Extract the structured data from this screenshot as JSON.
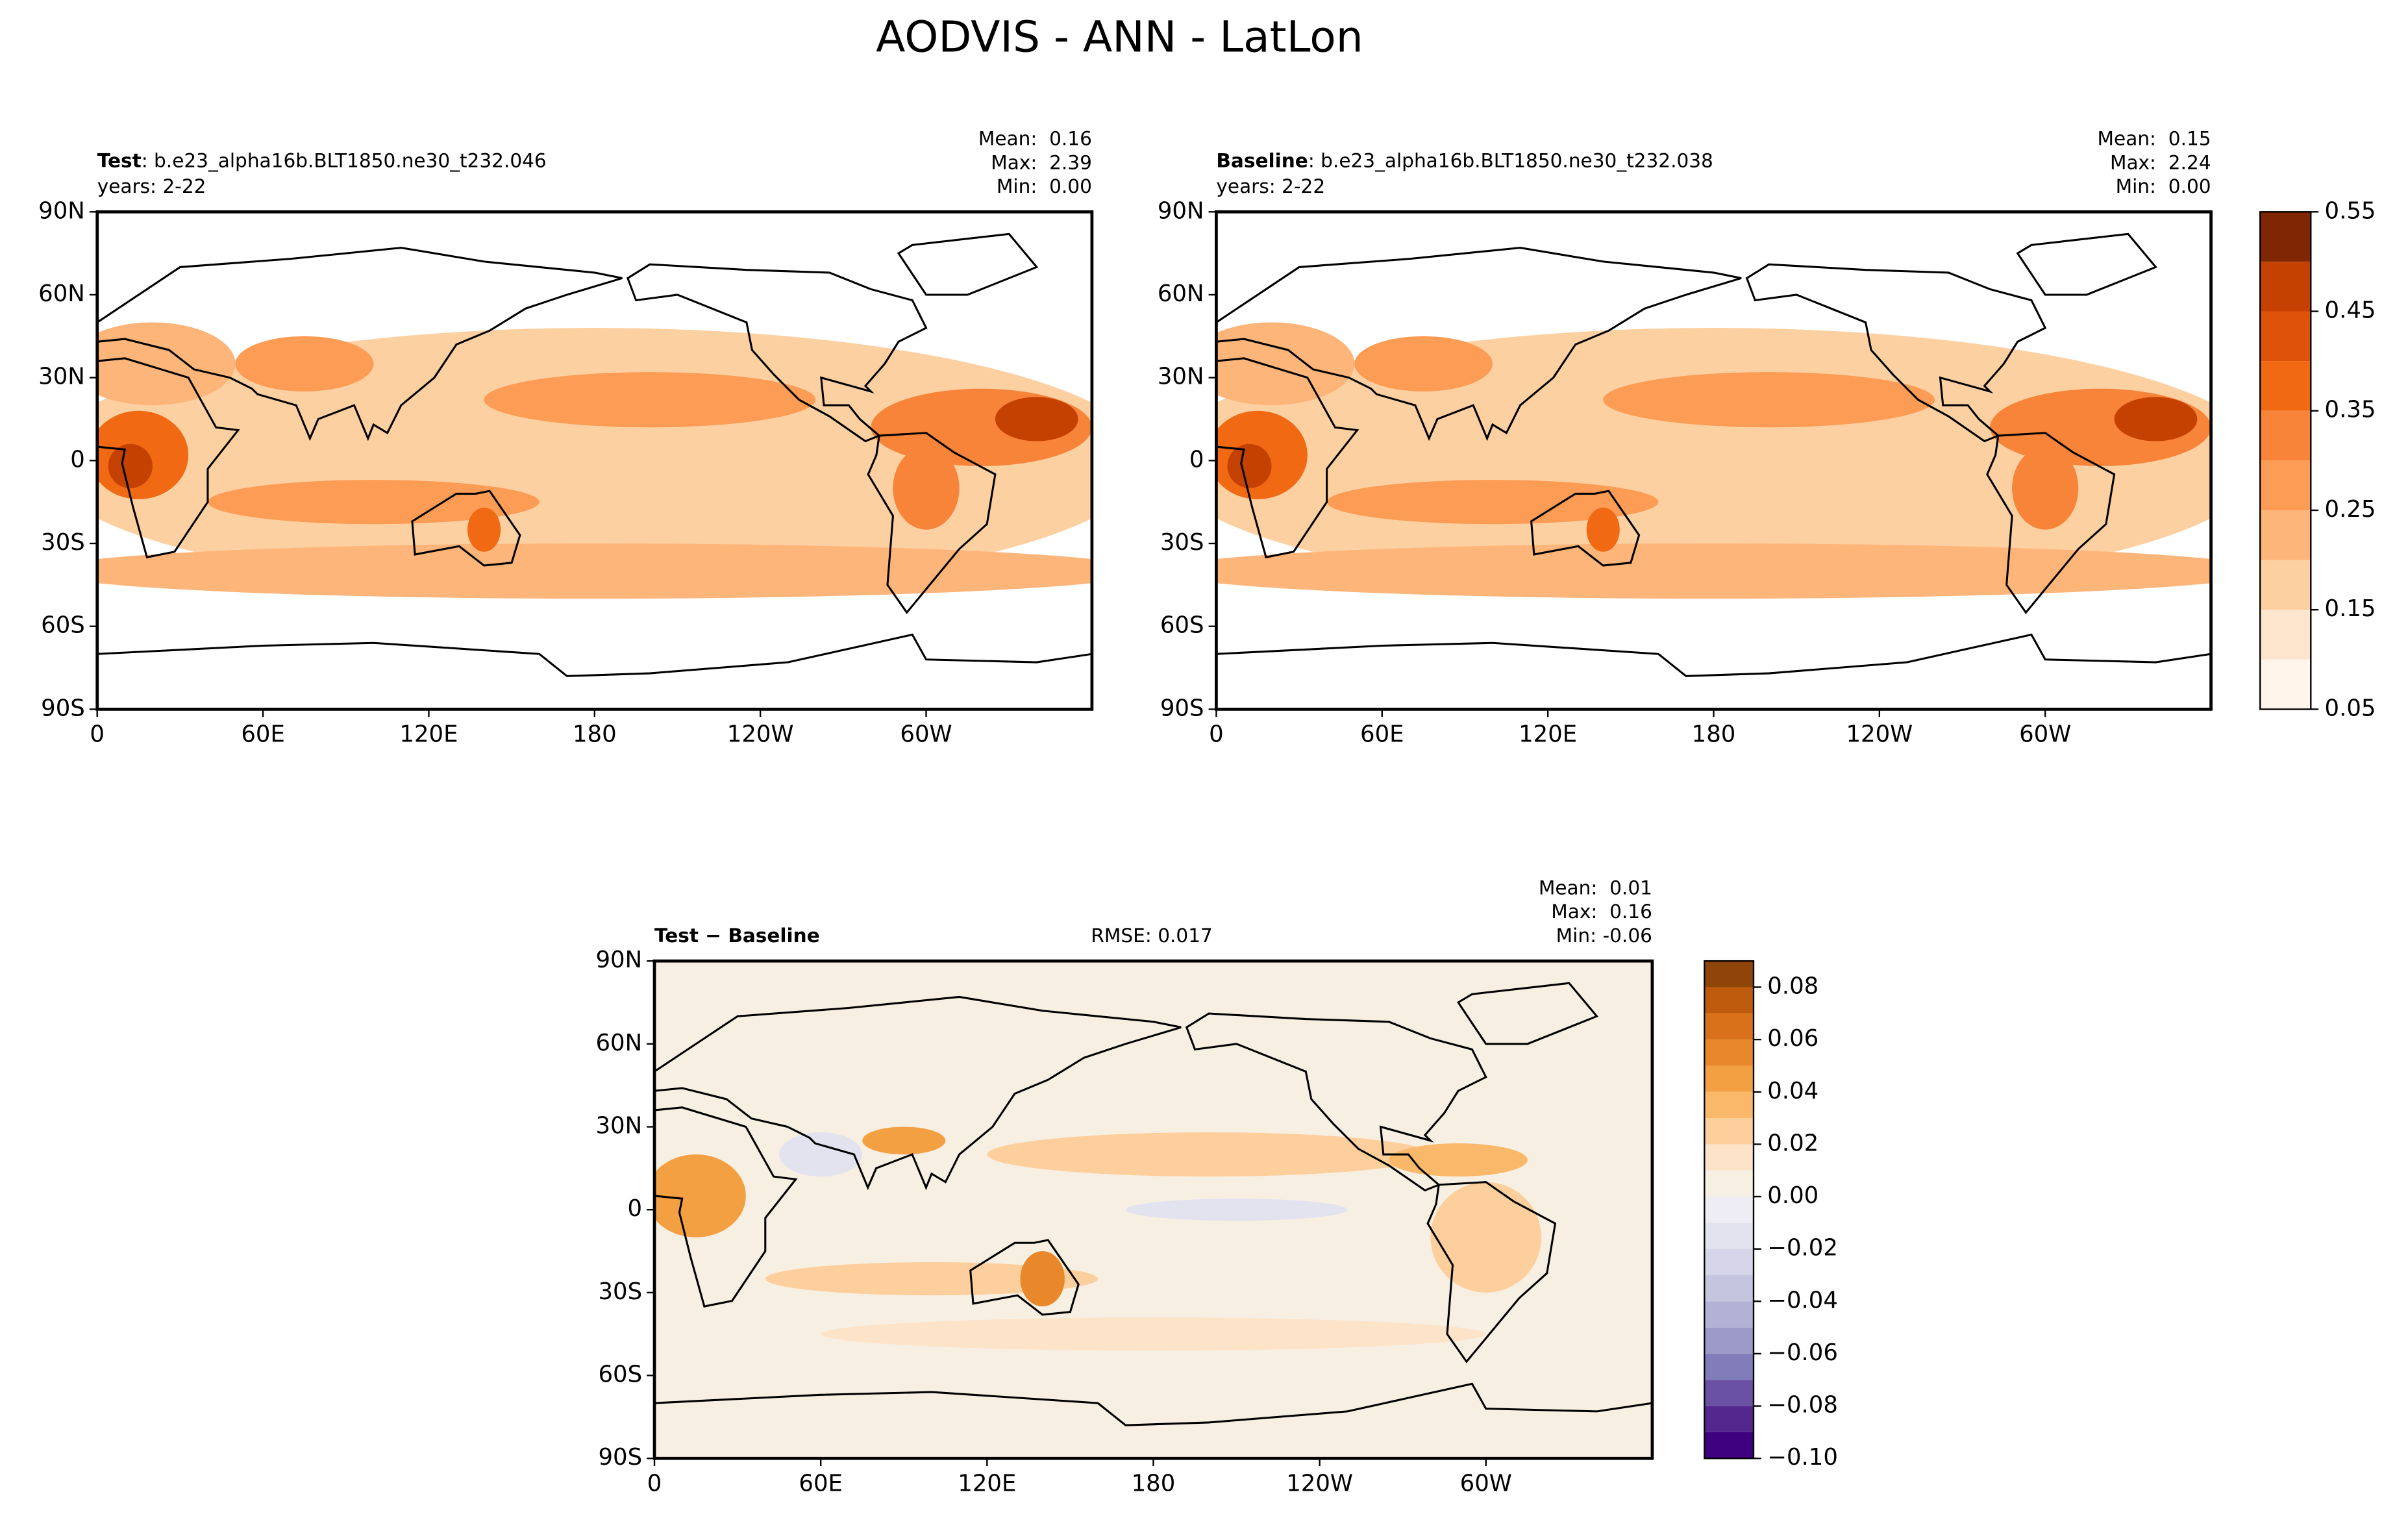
{
  "title": "AODVIS - ANN - LatLon",
  "chart_data": [
    {
      "type": "map",
      "name": "Test",
      "case": ": b.e23_alpha16b.BLT1850.ne30_t232.046",
      "years": "years: 2-22",
      "stats": [
        "Mean:  0.16",
        "Max:  2.39",
        "Min:  0.00"
      ],
      "xlim": [
        0,
        360
      ],
      "ylim": [
        -90,
        90
      ],
      "xticks": [
        0,
        {
          "value": 60,
          "label": "60E"
        },
        {
          "value": 120,
          "label": "120E"
        },
        180,
        {
          "value": 240,
          "label": "120W"
        },
        {
          "value": 300,
          "label": "60W"
        }
      ],
      "yticks": [
        {
          "value": 90,
          "label": "90N"
        },
        {
          "value": 60,
          "label": "60N"
        },
        {
          "value": 30,
          "label": "30N"
        },
        0,
        {
          "value": -30,
          "label": "30S"
        },
        {
          "value": -60,
          "label": "60S"
        },
        {
          "value": -90,
          "label": "90S"
        }
      ]
    },
    {
      "type": "map",
      "name": "Baseline",
      "case": ": b.e23_alpha16b.BLT1850.ne30_t232.038",
      "years": "years: 2-22",
      "stats": [
        "Mean:  0.15",
        "Max:  2.24",
        "Min:  0.00"
      ],
      "xlim": [
        0,
        360
      ],
      "ylim": [
        -90,
        90
      ],
      "xticks": [
        0,
        {
          "value": 60,
          "label": "60E"
        },
        {
          "value": 120,
          "label": "120E"
        },
        180,
        {
          "value": 240,
          "label": "120W"
        },
        {
          "value": 300,
          "label": "60W"
        }
      ],
      "yticks": [
        {
          "value": 90,
          "label": "90N"
        },
        {
          "value": 60,
          "label": "60N"
        },
        {
          "value": 30,
          "label": "30N"
        },
        0,
        {
          "value": -30,
          "label": "30S"
        },
        {
          "value": -60,
          "label": "60S"
        },
        {
          "value": -90,
          "label": "90S"
        }
      ],
      "colorbar": {
        "levels": [
          0.05,
          0.1,
          0.15,
          0.2,
          0.25,
          0.3,
          0.35,
          0.4,
          0.45,
          0.5,
          0.55
        ],
        "colors": [
          "#fff5eb",
          "#fee6ce",
          "#fdd0a2",
          "#fdb57a",
          "#fd9c55",
          "#f8843a",
          "#f16913",
          "#df520a",
          "#c44102",
          "#7f2704"
        ],
        "lim": [
          0.05,
          0.55
        ],
        "ticks": [
          0.05,
          0.15,
          0.25,
          0.35,
          0.45,
          0.55
        ]
      }
    },
    {
      "type": "map",
      "name": "Test − Baseline",
      "rmse": "RMSE: 0.017",
      "stats": [
        "Mean:  0.01",
        "Max:  0.16",
        "Min: -0.06"
      ],
      "xlim": [
        0,
        360
      ],
      "ylim": [
        -90,
        90
      ],
      "xticks": [
        0,
        {
          "value": 60,
          "label": "60E"
        },
        {
          "value": 120,
          "label": "120E"
        },
        180,
        {
          "value": 240,
          "label": "120W"
        },
        {
          "value": 300,
          "label": "60W"
        }
      ],
      "yticks": [
        {
          "value": 90,
          "label": "90N"
        },
        {
          "value": 60,
          "label": "60N"
        },
        {
          "value": 30,
          "label": "30N"
        },
        0,
        {
          "value": -30,
          "label": "30S"
        },
        {
          "value": -60,
          "label": "60S"
        },
        {
          "value": -90,
          "label": "90S"
        }
      ],
      "colorbar": {
        "levels": [
          -0.1,
          -0.09,
          -0.08,
          -0.07,
          -0.06,
          -0.05,
          -0.04,
          -0.03,
          -0.02,
          -0.01,
          0,
          0.01,
          0.02,
          0.03,
          0.04,
          0.05,
          0.06,
          0.07,
          0.08,
          0.09
        ],
        "colors": [
          "#3f007d",
          "#54278f",
          "#6a51a3",
          "#807dba",
          "#9e9ac8",
          "#b3b1d4",
          "#c6c5e0",
          "#d6d5ea",
          "#e3e2ef",
          "#eeedf5",
          "#f8efe3",
          "#fde3c8",
          "#fdcf9c",
          "#f9b86a",
          "#f3a043",
          "#e8882a",
          "#d9711a",
          "#be5b0c",
          "#8f4508"
        ],
        "lim": [
          -0.1,
          0.09
        ],
        "ticks": [
          0.08,
          0.06,
          0.04,
          0.02,
          {
            "value": 0,
            "label": "0.00"
          },
          {
            "value": -0.02,
            "label": "−0.02"
          },
          {
            "value": -0.04,
            "label": "−0.04"
          },
          {
            "value": -0.06,
            "label": "−0.06"
          },
          {
            "value": -0.08,
            "label": "−0.08"
          },
          {
            "value": -0.1,
            "label": "−0.10"
          }
        ]
      }
    }
  ]
}
